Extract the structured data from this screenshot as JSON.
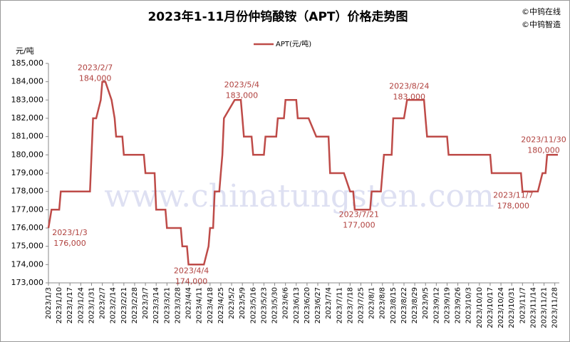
{
  "chart_data": {
    "type": "line",
    "title": "2023年1-11月份仲钨酸铵（APT）价格走势图",
    "copyright": [
      "©中钨在线",
      "©中钨智造"
    ],
    "watermark": "www.chinatungsten.com",
    "y_unit": "元/吨",
    "grid": false,
    "legend": "top",
    "x": [
      "2023/1/3",
      "2023/1/5",
      "2023/1/10",
      "2023/1/11",
      "2023/1/30",
      "2023/2/1",
      "2023/2/3",
      "2023/2/6",
      "2023/2/7",
      "2023/2/9",
      "2023/2/13",
      "2023/2/15",
      "2023/2/16",
      "2023/2/20",
      "2023/2/21",
      "2023/3/6",
      "2023/3/7",
      "2023/3/13",
      "2023/3/14",
      "2023/3/20",
      "2023/3/21",
      "2023/3/30",
      "2023/3/31",
      "2023/4/3",
      "2023/4/4",
      "2023/4/14",
      "2023/4/17",
      "2023/4/18",
      "2023/4/20",
      "2023/4/21",
      "2023/4/24",
      "2023/4/25",
      "2023/4/26",
      "2023/4/27",
      "2023/5/4",
      "2023/5/8",
      "2023/5/9",
      "2023/5/10",
      "2023/5/15",
      "2023/5/16",
      "2023/5/23",
      "2023/5/24",
      "2023/5/31",
      "2023/6/1",
      "2023/6/5",
      "2023/6/6",
      "2023/6/13",
      "2023/6/14",
      "2023/6/21",
      "2023/6/26",
      "2023/7/4",
      "2023/7/5",
      "2023/7/14",
      "2023/7/18",
      "2023/7/20",
      "2023/7/21",
      "2023/7/31",
      "2023/8/1",
      "2023/8/7",
      "2023/8/8",
      "2023/8/9",
      "2023/8/14",
      "2023/8/15",
      "2023/8/22",
      "2023/8/24",
      "2023/9/4",
      "2023/9/5",
      "2023/9/6",
      "2023/9/19",
      "2023/9/20",
      "2023/10/17",
      "2023/10/18",
      "2023/11/6",
      "2023/11/7",
      "2023/11/17",
      "2023/11/20",
      "2023/11/22",
      "2023/11/23",
      "2023/11/30"
    ],
    "series": [
      {
        "name": "APT(元/吨)",
        "color": "#be4b48",
        "values": [
          176000,
          177000,
          177000,
          178000,
          178000,
          182000,
          182000,
          183000,
          184000,
          184000,
          183000,
          182000,
          181000,
          181000,
          180000,
          180000,
          179000,
          179000,
          177000,
          177000,
          176000,
          176000,
          175000,
          175000,
          174000,
          174000,
          175000,
          176000,
          176000,
          178000,
          178000,
          179000,
          180000,
          182000,
          183000,
          183000,
          182000,
          181000,
          181000,
          180000,
          180000,
          181000,
          181000,
          182000,
          182000,
          183000,
          183000,
          182000,
          182000,
          181000,
          181000,
          179000,
          179000,
          178000,
          178000,
          177000,
          177000,
          178000,
          178000,
          179000,
          180000,
          180000,
          182000,
          182000,
          183000,
          183000,
          182000,
          181000,
          181000,
          180000,
          180000,
          179000,
          179000,
          178000,
          178000,
          179000,
          179000,
          180000,
          180000
        ]
      }
    ],
    "annotations": [
      {
        "x": "2023/1/3",
        "value": 176000,
        "date_label": "2023/1/3",
        "value_label": "176,000"
      },
      {
        "x": "2023/2/7",
        "value": 184000,
        "date_label": "2023/2/7",
        "value_label": "184,000"
      },
      {
        "x": "2023/4/4",
        "value": 174000,
        "date_label": "2023/4/4",
        "value_label": "174,000"
      },
      {
        "x": "2023/5/4",
        "value": 183000,
        "date_label": "2023/5/4",
        "value_label": "183,000"
      },
      {
        "x": "2023/7/21",
        "value": 177000,
        "date_label": "2023/7/21",
        "value_label": "177,000"
      },
      {
        "x": "2023/8/24",
        "value": 183000,
        "date_label": "2023/8/24",
        "value_label": "183,000"
      },
      {
        "x": "2023/11/7",
        "value": 178000,
        "date_label": "2023/11/7",
        "value_label": "178,000"
      },
      {
        "x": "2023/11/30",
        "value": 180000,
        "date_label": "2023/11/30",
        "value_label": "180,000"
      }
    ],
    "xlim": [
      "2023/1/3",
      "2023/11/30"
    ],
    "xticks": [
      "2023/1/3",
      "2023/1/10",
      "2023/1/17",
      "2023/1/24",
      "2023/1/31",
      "2023/2/7",
      "2023/2/14",
      "2023/2/21",
      "2023/2/28",
      "2023/3/7",
      "2023/3/14",
      "2023/3/21",
      "2023/3/28",
      "2023/4/4",
      "2023/4/11",
      "2023/4/18",
      "2023/4/25",
      "2023/5/2",
      "2023/5/9",
      "2023/5/16",
      "2023/5/23",
      "2023/5/30",
      "2023/6/6",
      "2023/6/13",
      "2023/6/20",
      "2023/6/27",
      "2023/7/4",
      "2023/7/11",
      "2023/7/18",
      "2023/7/25",
      "2023/8/1",
      "2023/8/8",
      "2023/8/15",
      "2023/8/22",
      "2023/8/29",
      "2023/9/5",
      "2023/9/12",
      "2023/9/19",
      "2023/9/26",
      "2023/10/3",
      "2023/10/10",
      "2023/10/17",
      "2023/10/24",
      "2023/10/31",
      "2023/11/7",
      "2023/11/14",
      "2023/11/21",
      "2023/11/28"
    ],
    "ylim": [
      173000,
      185000
    ],
    "yticks": [
      {
        "value": 173000,
        "label": "173,000"
      },
      {
        "value": 174000,
        "label": "174,000"
      },
      {
        "value": 175000,
        "label": "175,000"
      },
      {
        "value": 176000,
        "label": "176,000"
      },
      {
        "value": 177000,
        "label": "177,000"
      },
      {
        "value": 178000,
        "label": "178,000"
      },
      {
        "value": 179000,
        "label": "179,000"
      },
      {
        "value": 180000,
        "label": "180,000"
      },
      {
        "value": 181000,
        "label": "181,000"
      },
      {
        "value": 182000,
        "label": "182,000"
      },
      {
        "value": 183000,
        "label": "183,000"
      },
      {
        "value": 184000,
        "label": "184,000"
      },
      {
        "value": 185000,
        "label": "185,000"
      }
    ]
  }
}
